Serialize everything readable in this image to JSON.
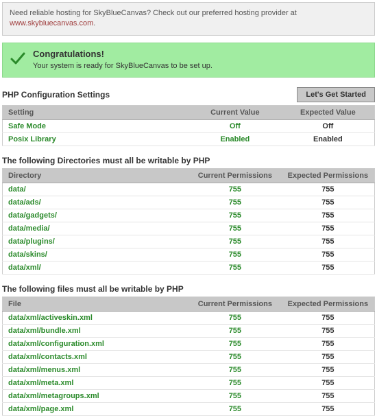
{
  "promo": {
    "text_before": "Need reliable hosting for SkyBlueCanvas? Check out our preferred hosting provider at ",
    "link_text": "www.skybluecanvas.com",
    "text_after": "."
  },
  "congrats": {
    "title": "Congratulations!",
    "message": "Your system is ready for SkyBlueCanvas to be set up."
  },
  "php_section": {
    "heading": "PHP Configuration Settings",
    "button_label": "Let's Get Started",
    "headers": {
      "c1": "Setting",
      "c2": "Current Value",
      "c3": "Expected Value"
    },
    "rows": [
      {
        "name": "Safe Mode",
        "current": "Off",
        "expected": "Off"
      },
      {
        "name": "Posix Library",
        "current": "Enabled",
        "expected": "Enabled"
      }
    ]
  },
  "dirs_section": {
    "heading": "The following Directories must all be writable by PHP",
    "headers": {
      "c1": "Directory",
      "c2": "Current Permissions",
      "c3": "Expected Permissions"
    },
    "rows": [
      {
        "name": "data/",
        "current": "755",
        "expected": "755"
      },
      {
        "name": "data/ads/",
        "current": "755",
        "expected": "755"
      },
      {
        "name": "data/gadgets/",
        "current": "755",
        "expected": "755"
      },
      {
        "name": "data/media/",
        "current": "755",
        "expected": "755"
      },
      {
        "name": "data/plugins/",
        "current": "755",
        "expected": "755"
      },
      {
        "name": "data/skins/",
        "current": "755",
        "expected": "755"
      },
      {
        "name": "data/xml/",
        "current": "755",
        "expected": "755"
      }
    ]
  },
  "files_section": {
    "heading": "The following files must all be writable by PHP",
    "headers": {
      "c1": "File",
      "c2": "Current Permissions",
      "c3": "Expected Permissions"
    },
    "rows": [
      {
        "name": "data/xml/activeskin.xml",
        "current": "755",
        "expected": "755"
      },
      {
        "name": "data/xml/bundle.xml",
        "current": "755",
        "expected": "755"
      },
      {
        "name": "data/xml/configuration.xml",
        "current": "755",
        "expected": "755"
      },
      {
        "name": "data/xml/contacts.xml",
        "current": "755",
        "expected": "755"
      },
      {
        "name": "data/xml/menus.xml",
        "current": "755",
        "expected": "755"
      },
      {
        "name": "data/xml/meta.xml",
        "current": "755",
        "expected": "755"
      },
      {
        "name": "data/xml/metagroups.xml",
        "current": "755",
        "expected": "755"
      },
      {
        "name": "data/xml/page.xml",
        "current": "755",
        "expected": "755"
      }
    ]
  },
  "colors": {
    "promo_bg": "#f0f0f0",
    "success_bg": "#a1eca1",
    "header_bg": "#c8c8c8",
    "green_text": "#2a8a2a",
    "link_red": "#9e3a3a"
  }
}
